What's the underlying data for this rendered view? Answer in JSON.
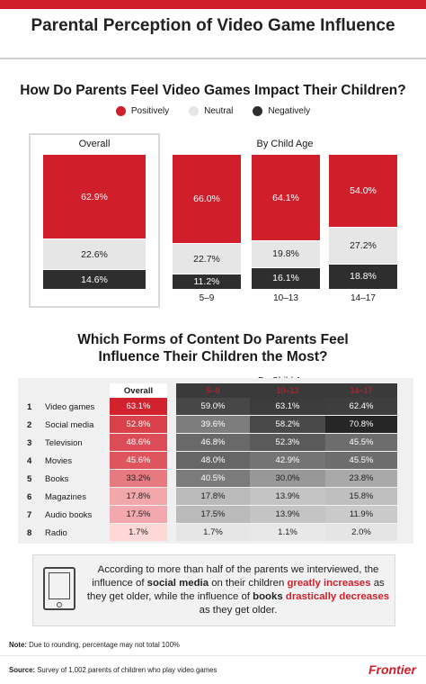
{
  "header": {
    "title": "Parental Perception of Video Game Influence"
  },
  "section1": {
    "title": "How Do Parents Feel Video Games Impact Their Children?",
    "legend": [
      {
        "label": "Positively",
        "color": "#d01f2b"
      },
      {
        "label": "Neutral",
        "color": "#e6e6e6"
      },
      {
        "label": "Negatively",
        "color": "#2e2e2e"
      }
    ],
    "overall_label": "Overall",
    "by_age_label": "By Child Age"
  },
  "section2": {
    "title_line1": "Which Forms of Content Do Parents Feel",
    "title_line2": "Influence Their Children the Most?",
    "by_age_label": "By Child Age",
    "overall_label": "Overall",
    "age_labels": [
      "5–9",
      "10–13",
      "14–17"
    ]
  },
  "callout": {
    "t1": "According to more than half of the parents we interviewed, the influence of ",
    "t2": "social media",
    "t3": " on their children ",
    "t4": "greatly increases",
    "t5": " as they get older, while the influence of ",
    "t6": "books",
    "t7": " ",
    "t8": "drastically decreases",
    "t9": " as they get older."
  },
  "note": {
    "label": "Note:",
    "text": " Due to rounding, percentage may not total 100%"
  },
  "source": {
    "label": "Source:",
    "text": " Survey of 1,002 parents of children who play video games"
  },
  "brand": "Frontier",
  "chart_data": [
    {
      "type": "bar",
      "title": "How Do Parents Feel Video Games Impact Their Children?",
      "categories": [
        "Overall",
        "5–9",
        "10–13",
        "14–17"
      ],
      "series": [
        {
          "name": "Positively",
          "values": [
            62.9,
            66.0,
            64.1,
            54.0
          ],
          "labels": [
            "62.9%",
            "66.0%",
            "64.1%",
            "54.0%"
          ]
        },
        {
          "name": "Neutral",
          "values": [
            22.6,
            22.7,
            19.8,
            27.2
          ],
          "labels": [
            "22.6%",
            "22.7%",
            "19.8%",
            "27.2%"
          ]
        },
        {
          "name": "Negatively",
          "values": [
            14.6,
            11.2,
            16.1,
            18.8
          ],
          "labels": [
            "14.6%",
            "11.2%",
            "16.1%",
            "18.8%"
          ]
        }
      ]
    },
    {
      "type": "table",
      "title": "Which Forms of Content Do Parents Feel Influence Their Children the Most?",
      "columns": [
        "Overall",
        "5–9",
        "10–13",
        "14–17"
      ],
      "rows": [
        {
          "rank": "1",
          "label": "Video games",
          "values": [
            "63.1%",
            "59.0%",
            "63.1%",
            "62.4%"
          ]
        },
        {
          "rank": "2",
          "label": "Social media",
          "values": [
            "52.8%",
            "39.6%",
            "58.2%",
            "70.8%"
          ]
        },
        {
          "rank": "3",
          "label": "Television",
          "values": [
            "48.6%",
            "46.8%",
            "52.3%",
            "45.5%"
          ]
        },
        {
          "rank": "4",
          "label": "Movies",
          "values": [
            "45.6%",
            "48.0%",
            "42.9%",
            "45.5%"
          ]
        },
        {
          "rank": "5",
          "label": "Books",
          "values": [
            "33.2%",
            "40.5%",
            "30.0%",
            "23.8%"
          ]
        },
        {
          "rank": "6",
          "label": "Magazines",
          "values": [
            "17.8%",
            "17.8%",
            "13.9%",
            "15.8%"
          ]
        },
        {
          "rank": "7",
          "label": "Audio books",
          "values": [
            "17.5%",
            "17.5%",
            "13.9%",
            "11.9%"
          ]
        },
        {
          "rank": "8",
          "label": "Radio",
          "values": [
            "1.7%",
            "1.7%",
            "1.1%",
            "2.0%"
          ]
        }
      ]
    }
  ]
}
